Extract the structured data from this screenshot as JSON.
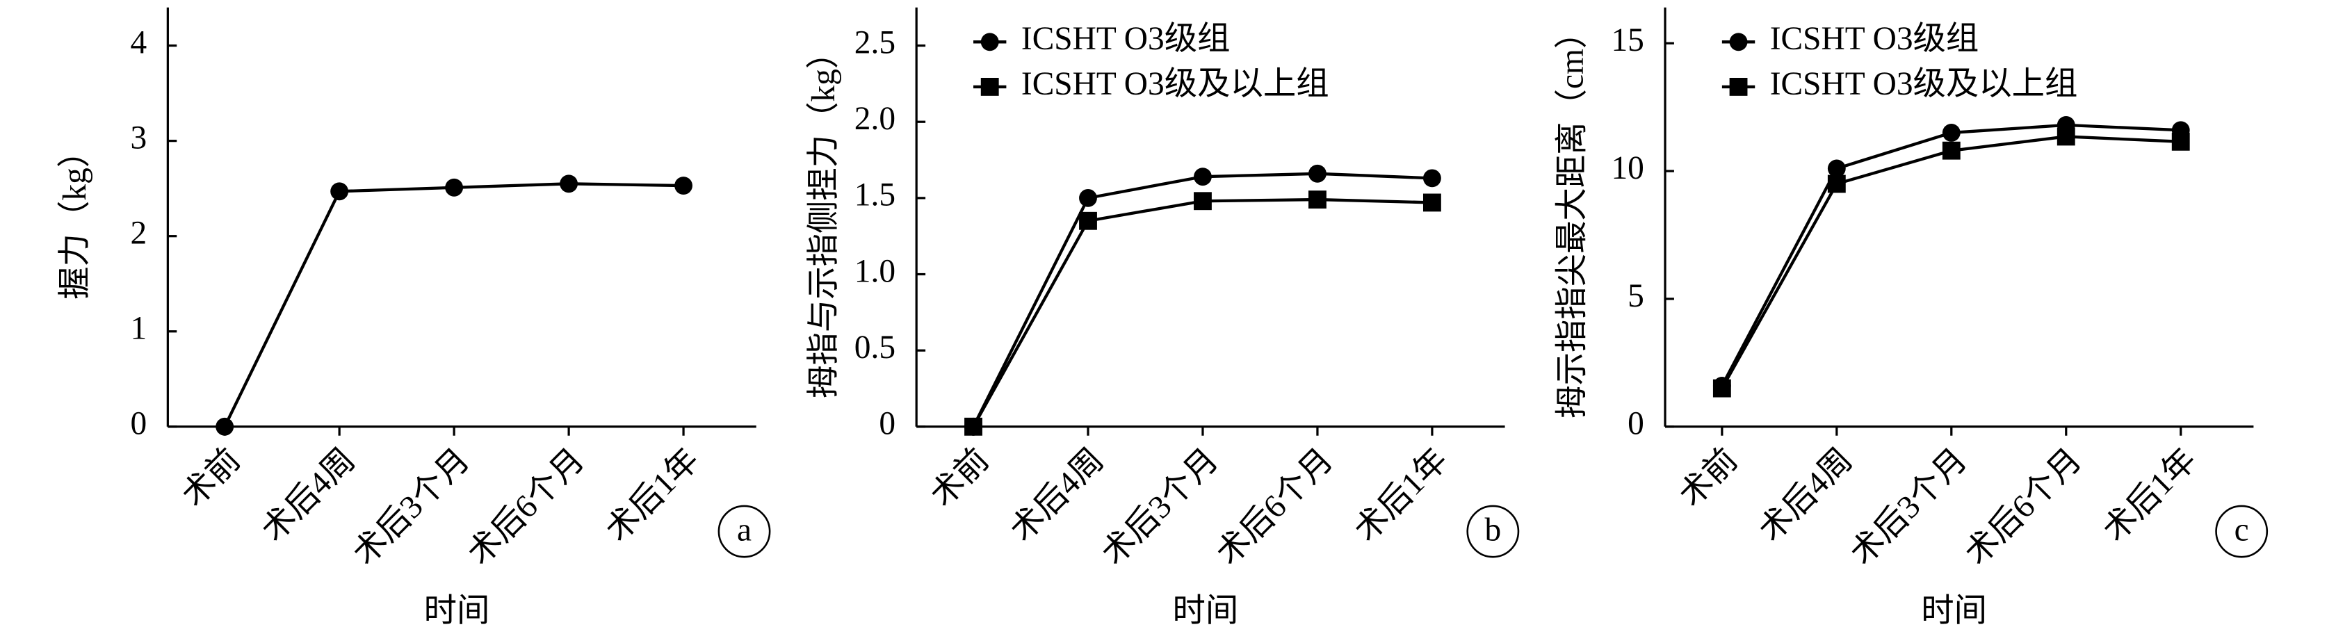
{
  "chart_data": [
    {
      "type": "line",
      "ylabel": "握力（kg）",
      "xlabel": "时间",
      "annotation": "a",
      "categories": [
        "术前",
        "术后4周",
        "术后3个月",
        "术后6个月",
        "术后1年"
      ],
      "ylim": [
        0,
        4.4
      ],
      "yticks": [
        0,
        1,
        2,
        3,
        4
      ],
      "series": [
        {
          "color": "#000000",
          "marker": "circle",
          "values": [
            0,
            2.47,
            2.51,
            2.55,
            2.53
          ]
        }
      ]
    },
    {
      "type": "line",
      "ylabel": "拇指与示指侧捏力（kg）",
      "xlabel": "时间",
      "annotation": "b",
      "categories": [
        "术前",
        "术后4周",
        "术后3个月",
        "术后6个月",
        "术后1年"
      ],
      "ylim": [
        0,
        2.75
      ],
      "yticks": [
        0,
        0.5,
        {
          "value": 1,
          "label": "1.0"
        },
        1.5,
        {
          "value": 2,
          "label": "2.0"
        },
        2.5
      ],
      "legend": "upper left",
      "series": [
        {
          "name": "ICSHT O3级组",
          "color": "#000000",
          "marker": "circle",
          "values": [
            0,
            1.5,
            1.64,
            1.66,
            1.63
          ]
        },
        {
          "name": "ICSHT O3级及以上组",
          "color": "#000000",
          "marker": "square",
          "values": [
            0,
            1.35,
            1.48,
            1.49,
            1.47
          ]
        }
      ]
    },
    {
      "type": "line",
      "ylabel": "拇示指指尖最大距离（cm）",
      "xlabel": "时间",
      "annotation": "c",
      "categories": [
        "术前",
        "术后4周",
        "术后3个月",
        "术后6个月",
        "术后1年"
      ],
      "ylim": [
        0,
        16.4
      ],
      "yticks": [
        0,
        5,
        10,
        15
      ],
      "legend": "upper left",
      "series": [
        {
          "name": "ICSHT O3级组",
          "color": "#000000",
          "marker": "circle",
          "values": [
            1.6,
            10.1,
            11.5,
            11.8,
            11.6
          ]
        },
        {
          "name": "ICSHT O3级及以上组",
          "color": "#000000",
          "marker": "square",
          "values": [
            1.5,
            9.5,
            10.8,
            11.35,
            11.15
          ]
        }
      ]
    }
  ]
}
